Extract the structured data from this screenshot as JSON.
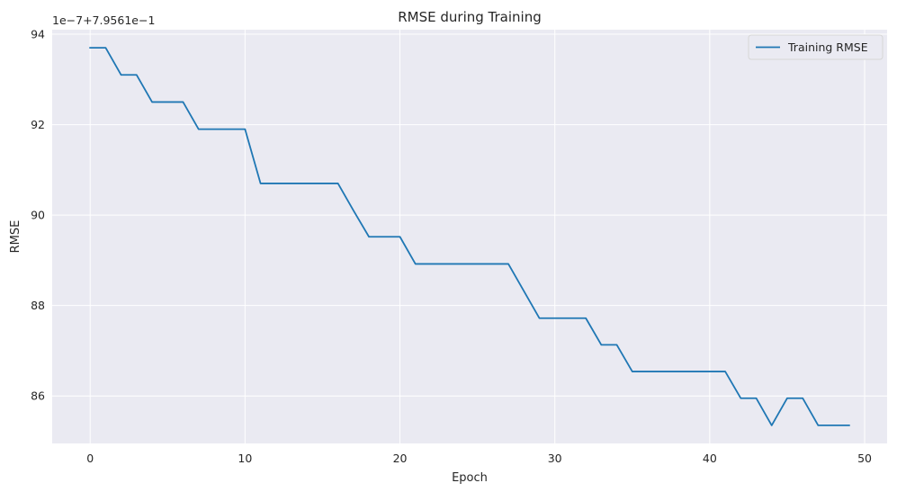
{
  "chart_data": {
    "type": "line",
    "title": "RMSE during Training",
    "xlabel": "Epoch",
    "ylabel": "RMSE",
    "y_offset_label": "1e−7+7.9561e−1",
    "xlim": [
      -2.45,
      51.45
    ],
    "ylim": [
      84.95,
      94.1
    ],
    "x_ticks": [
      0,
      10,
      20,
      30,
      40,
      50
    ],
    "y_ticks": [
      86,
      88,
      90,
      92,
      94
    ],
    "x_tick_labels": [
      "0",
      "10",
      "20",
      "30",
      "40",
      "50"
    ],
    "y_tick_labels": [
      "86",
      "88",
      "90",
      "92",
      "94"
    ],
    "grid": true,
    "legend_position": "top-right",
    "colors": {
      "background": "#eaeaf2",
      "grid": "#ffffff",
      "line": "#1f77b4"
    },
    "series": [
      {
        "name": "Training RMSE",
        "x": [
          0,
          1,
          2,
          3,
          4,
          5,
          6,
          7,
          8,
          9,
          10,
          11,
          12,
          13,
          14,
          15,
          16,
          17,
          18,
          19,
          20,
          21,
          22,
          23,
          24,
          25,
          26,
          27,
          28,
          29,
          30,
          31,
          32,
          33,
          34,
          35,
          36,
          37,
          38,
          39,
          40,
          41,
          42,
          43,
          44,
          45,
          46,
          47,
          48,
          49
        ],
        "values": [
          93.7,
          93.7,
          93.1,
          93.1,
          92.5,
          92.5,
          92.5,
          91.9,
          91.9,
          91.9,
          91.9,
          90.7,
          90.7,
          90.7,
          90.7,
          90.7,
          90.7,
          90.1,
          89.52,
          89.52,
          89.52,
          88.92,
          88.92,
          88.92,
          88.92,
          88.92,
          88.92,
          88.92,
          88.32,
          87.72,
          87.72,
          87.72,
          87.72,
          87.13,
          87.13,
          86.54,
          86.54,
          86.54,
          86.54,
          86.54,
          86.54,
          86.54,
          85.95,
          85.95,
          85.35,
          85.95,
          85.95,
          85.35,
          85.35,
          85.35
        ]
      }
    ]
  }
}
